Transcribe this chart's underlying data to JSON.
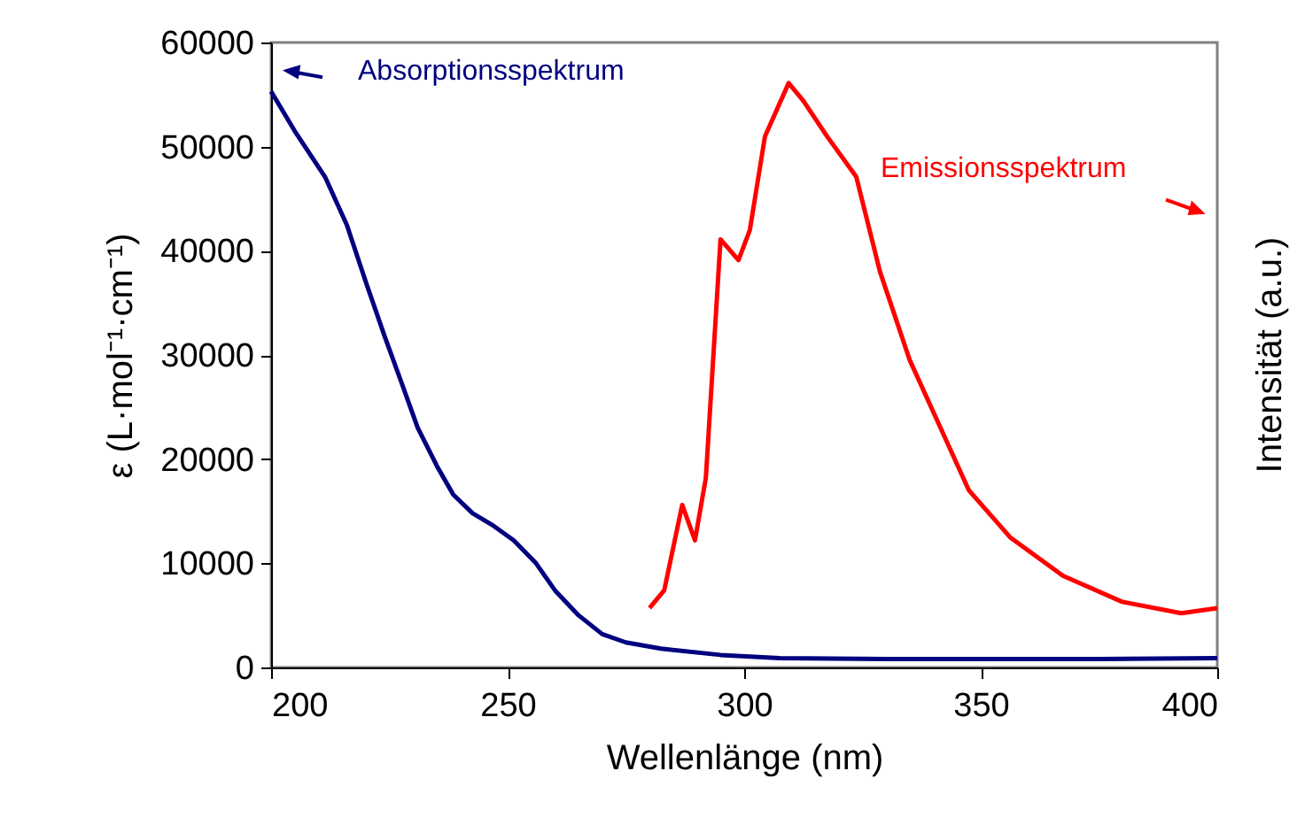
{
  "chart_data": {
    "type": "line",
    "xlabel": "Wellenlänge (nm)",
    "ylabel": "ε (L·mol⁻¹·cm⁻¹)",
    "y2label": "Intensität (a.u.)",
    "xlim": [
      200,
      400
    ],
    "xticks": [
      200,
      250,
      300,
      350,
      400
    ],
    "ylim": [
      0,
      60000
    ],
    "yticks": [
      0,
      10000,
      20000,
      30000,
      40000,
      50000,
      60000
    ],
    "line_style": "solid",
    "series": [
      {
        "color": "#000080",
        "x": [
          200,
          205,
          211.4,
          216,
          220.1,
          224,
          227.6,
          231,
          235.1,
          238.5,
          242.6,
          247,
          251.3,
          256,
          260,
          265,
          270,
          275,
          282.4,
          295,
          307.5,
          330,
          350,
          375,
          400
        ],
        "values": [
          55300,
          51500,
          47100,
          42500,
          36900,
          31800,
          27300,
          23000,
          19300,
          16600,
          14800,
          13600,
          12200,
          10000,
          7400,
          5000,
          3200,
          2400,
          1800,
          1200,
          900,
          800,
          800,
          800,
          900
        ]
      },
      {
        "color": "#ff0000",
        "x": [
          280,
          283.1,
          286.9,
          289.6,
          291.9,
          295,
          298.8,
          301.2,
          304.4,
          309.4,
          312.5,
          317.5,
          323.7,
          328.7,
          335,
          341.2,
          347.5,
          356.2,
          367.4,
          379.9,
          392.4,
          400
        ],
        "values": [
          5700,
          7400,
          15600,
          12200,
          18200,
          41100,
          39100,
          42000,
          51000,
          56100,
          54400,
          51000,
          47100,
          38000,
          29500,
          23300,
          17000,
          12500,
          8800,
          6300,
          5200,
          5700
        ]
      }
    ],
    "annotations": [
      "Absorptionsspektrum",
      "Emissionsspektrum"
    ]
  }
}
